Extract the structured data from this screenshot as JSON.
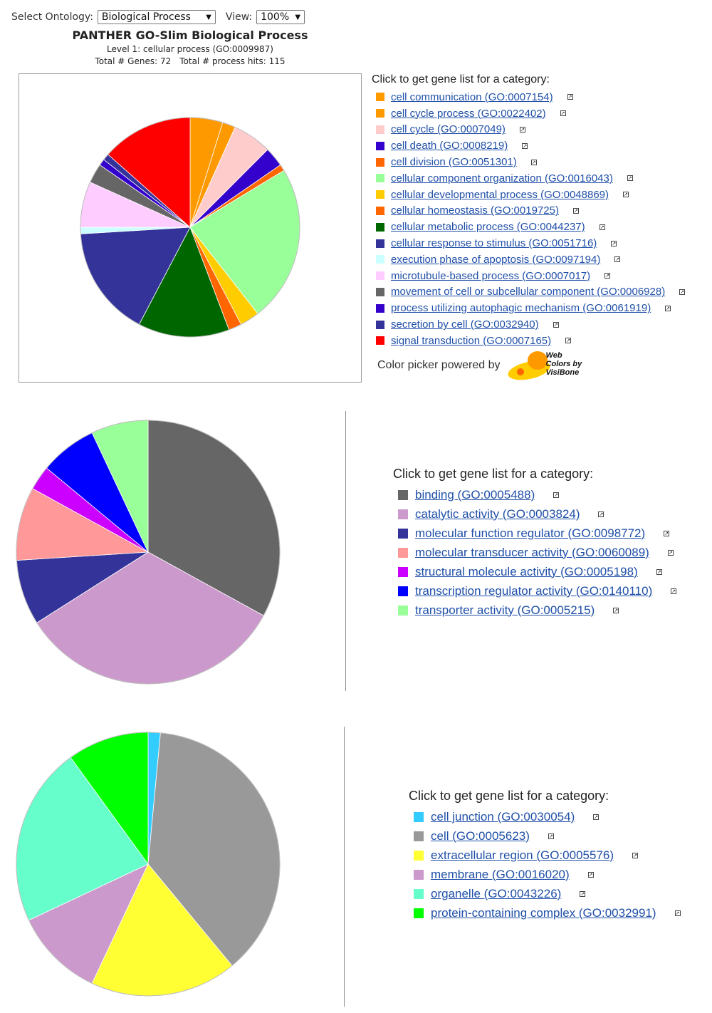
{
  "controls": {
    "ontology_label": "Select Ontology:",
    "ontology_value": "Biological Process",
    "view_label": "View:",
    "view_value": "100%"
  },
  "header": {
    "title": "PANTHER GO-Slim Biological Process",
    "subtitle": "Level 1: cellular process (GO:0009987)",
    "total_genes": "Total # Genes: 72",
    "total_hits": "Total # process hits: 115"
  },
  "legend_heading": "Click to get gene list for a category:",
  "powered": {
    "label": "Color picker powered by",
    "logo_line1": "Web",
    "logo_line2": "Colors by",
    "logo_line3": "VisiBone"
  },
  "chart_data": [
    {
      "type": "pie",
      "title": "PANTHER GO-Slim Biological Process",
      "legend": "right",
      "categories": [
        {
          "label": "cell communication (GO:0007154)",
          "value": 5,
          "color": "#ff9900"
        },
        {
          "label": "cell cycle process (GO:0022402)",
          "value": 2,
          "color": "#ff9900"
        },
        {
          "label": "cell cycle (GO:0007049)",
          "value": 6,
          "color": "#ffcccc"
        },
        {
          "label": "cell death (GO:0008219)",
          "value": 3,
          "color": "#3300cc"
        },
        {
          "label": "cell division (GO:0051301)",
          "value": 1,
          "color": "#ff6600"
        },
        {
          "label": "cellular component organization (GO:0016043)",
          "value": 24,
          "color": "#99ff99"
        },
        {
          "label": "cellular developmental process (GO:0048869)",
          "value": 3,
          "color": "#ffcc00"
        },
        {
          "label": "cellular homeostasis (GO:0019725)",
          "value": 2,
          "color": "#ff6600"
        },
        {
          "label": "cellular metabolic process (GO:0044237)",
          "value": 14,
          "color": "#006600"
        },
        {
          "label": "cellular response to stimulus (GO:0051716)",
          "value": 17,
          "color": "#333399"
        },
        {
          "label": "execution phase of apoptosis (GO:0097194)",
          "value": 1,
          "color": "#ccffff"
        },
        {
          "label": "microtubule-based process (GO:0007017)",
          "value": 7,
          "color": "#ffccff"
        },
        {
          "label": "movement of cell or subcellular component (GO:0006928)",
          "value": 3,
          "color": "#666666"
        },
        {
          "label": "process utilizing autophagic mechanism (GO:0061919)",
          "value": 1,
          "color": "#3300cc"
        },
        {
          "label": "secretion by cell (GO:0032940)",
          "value": 1,
          "color": "#333399"
        },
        {
          "label": "signal transduction (GO:0007165)",
          "value": 14,
          "color": "#ff0000"
        }
      ]
    },
    {
      "type": "pie",
      "legend": "right",
      "categories": [
        {
          "label": "binding (GO:0005488)",
          "value": 33,
          "color": "#666666"
        },
        {
          "label": "catalytic activity (GO:0003824)",
          "value": 33,
          "color": "#cc99cc"
        },
        {
          "label": "molecular function regulator (GO:0098772)",
          "value": 8,
          "color": "#333399"
        },
        {
          "label": "molecular transducer activity (GO:0060089)",
          "value": 9,
          "color": "#ff9999"
        },
        {
          "label": "structural molecule activity (GO:0005198)",
          "value": 3,
          "color": "#cc00ff"
        },
        {
          "label": "transcription regulator activity (GO:0140110)",
          "value": 7,
          "color": "#0000ff"
        },
        {
          "label": "transporter activity (GO:0005215)",
          "value": 7,
          "color": "#99ff99"
        }
      ]
    },
    {
      "type": "pie",
      "legend": "right",
      "categories": [
        {
          "label": "cell junction (GO:0030054)",
          "value": 1.5,
          "color": "#33ccff"
        },
        {
          "label": "cell (GO:0005623)",
          "value": 37.5,
          "color": "#999999"
        },
        {
          "label": "extracellular region (GO:0005576)",
          "value": 18,
          "color": "#ffff33"
        },
        {
          "label": "membrane (GO:0016020)",
          "value": 11,
          "color": "#cc99cc"
        },
        {
          "label": "organelle (GO:0043226)",
          "value": 22,
          "color": "#66ffcc"
        },
        {
          "label": "protein-containing complex (GO:0032991)",
          "value": 10,
          "color": "#00ff00"
        }
      ]
    }
  ]
}
